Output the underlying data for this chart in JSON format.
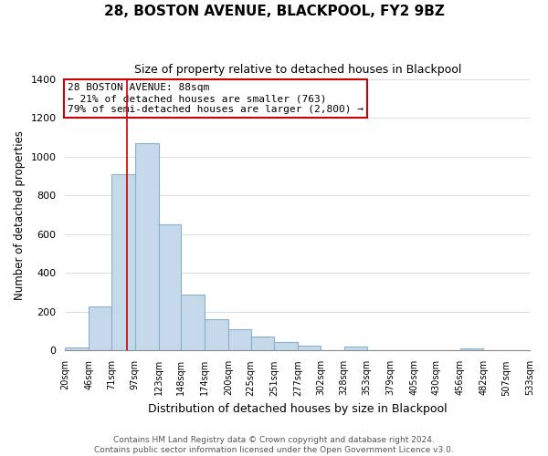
{
  "title": "28, BOSTON AVENUE, BLACKPOOL, FY2 9BZ",
  "subtitle": "Size of property relative to detached houses in Blackpool",
  "xlabel": "Distribution of detached houses by size in Blackpool",
  "ylabel": "Number of detached properties",
  "bar_color": "#c5d9ea",
  "bar_edge_color": "#8ab0cc",
  "grid_color": "#d0d8e0",
  "vline_color": "#cc0000",
  "vline_x": 88,
  "bin_edges": [
    20,
    46,
    71,
    97,
    123,
    148,
    174,
    200,
    225,
    251,
    277,
    302,
    328,
    353,
    379,
    405,
    430,
    456,
    482,
    507,
    533
  ],
  "bar_heights": [
    15,
    230,
    910,
    1070,
    650,
    290,
    160,
    110,
    75,
    45,
    25,
    0,
    20,
    0,
    0,
    0,
    0,
    10,
    0,
    0
  ],
  "tick_labels": [
    "20sqm",
    "46sqm",
    "71sqm",
    "97sqm",
    "123sqm",
    "148sqm",
    "174sqm",
    "200sqm",
    "225sqm",
    "251sqm",
    "277sqm",
    "302sqm",
    "328sqm",
    "353sqm",
    "379sqm",
    "405sqm",
    "430sqm",
    "456sqm",
    "482sqm",
    "507sqm",
    "533sqm"
  ],
  "ylim": [
    0,
    1400
  ],
  "yticks": [
    0,
    200,
    400,
    600,
    800,
    1000,
    1200,
    1400
  ],
  "annotation_title": "28 BOSTON AVENUE: 88sqm",
  "annotation_line1": "← 21% of detached houses are smaller (763)",
  "annotation_line2": "79% of semi-detached houses are larger (2,800) →",
  "annotation_box_color": "#ffffff",
  "annotation_box_edge": "#cc0000",
  "footer_line1": "Contains HM Land Registry data © Crown copyright and database right 2024.",
  "footer_line2": "Contains public sector information licensed under the Open Government Licence v3.0.",
  "background_color": "#ffffff",
  "figsize": [
    6.0,
    5.0
  ],
  "dpi": 100
}
